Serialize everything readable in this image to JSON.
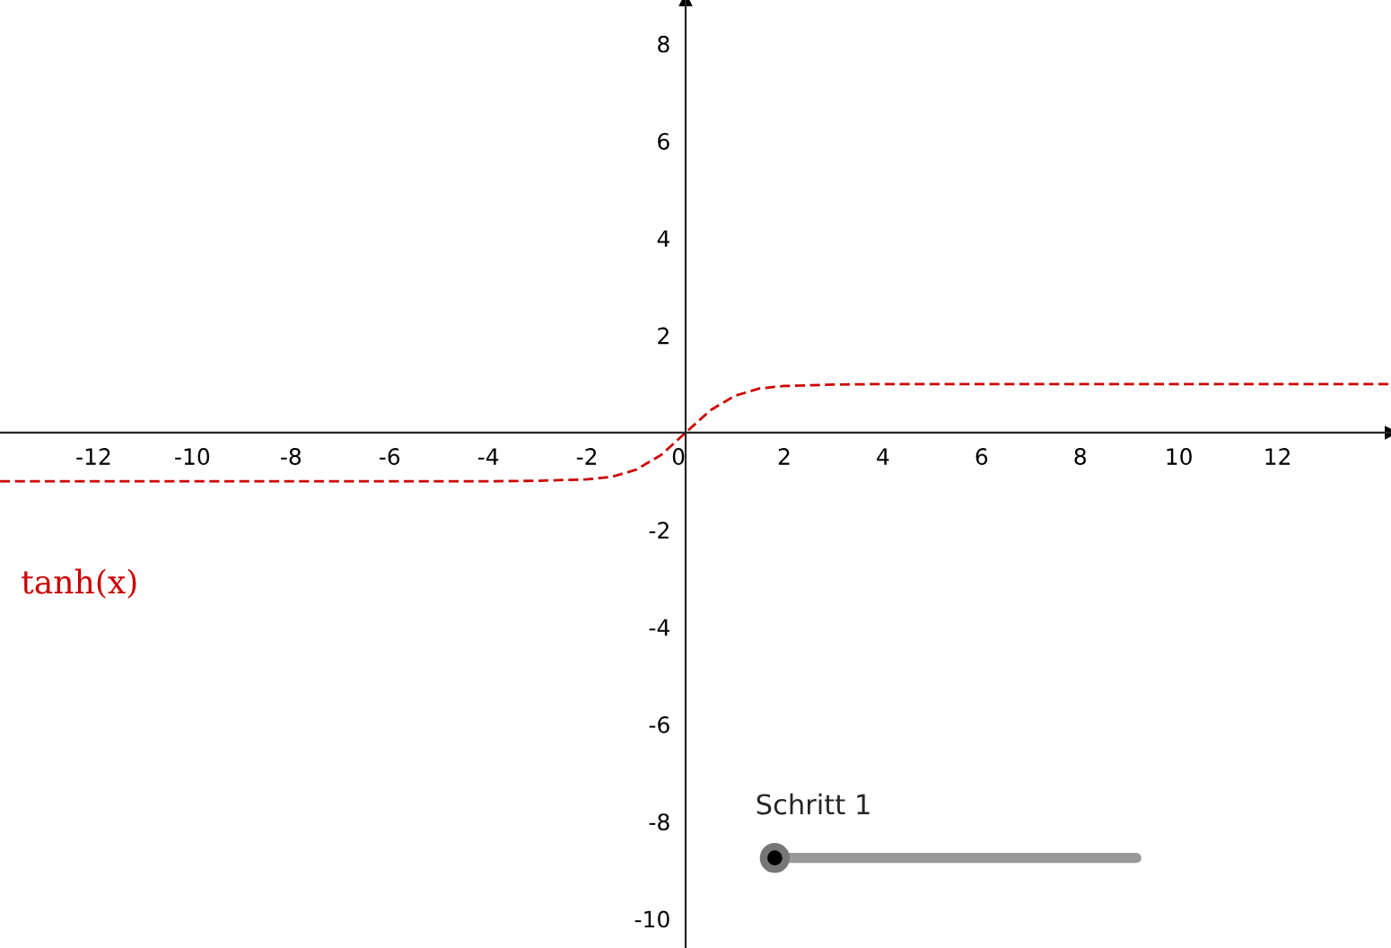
{
  "chart_data": {
    "type": "line",
    "x": [
      -13.9,
      -5,
      -4,
      -3,
      -2,
      -1.5,
      -1,
      -0.5,
      0,
      0.5,
      1,
      1.5,
      2,
      3,
      4,
      5,
      14.3
    ],
    "series": [
      {
        "color": "#cc0000",
        "values": [
          -1,
          -1,
          -1,
          -0.99,
          -0.96,
          -0.91,
          -0.76,
          -0.46,
          0,
          0.46,
          0.76,
          0.91,
          0.96,
          0.99,
          1,
          1,
          1
        ]
      }
    ],
    "xlim": [
      -13.9,
      14.3
    ],
    "ylim": [
      -10.6,
      8.9
    ],
    "xticks": [
      -12,
      -10,
      -8,
      -6,
      -4,
      -2,
      0,
      2,
      4,
      6,
      8,
      10,
      12
    ],
    "yticks": [
      -10,
      -8,
      -6,
      -4,
      -2,
      2,
      4,
      6,
      8
    ],
    "annotations": [
      "tanh(x)",
      "Schritt 1"
    ],
    "grid": false,
    "legend": false,
    "marker": "none",
    "line_style": "dashed"
  }
}
